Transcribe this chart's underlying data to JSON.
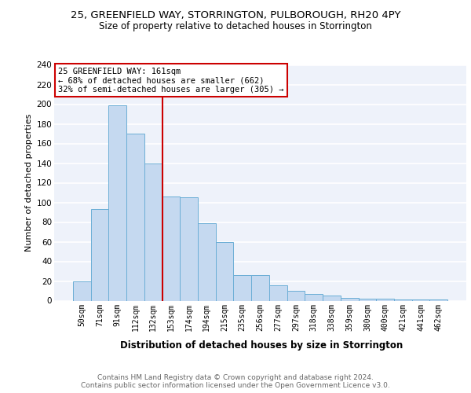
{
  "title1": "25, GREENFIELD WAY, STORRINGTON, PULBOROUGH, RH20 4PY",
  "title2": "Size of property relative to detached houses in Storrington",
  "xlabel": "Distribution of detached houses by size in Storrington",
  "ylabel": "Number of detached properties",
  "categories": [
    "50sqm",
    "71sqm",
    "91sqm",
    "112sqm",
    "132sqm",
    "153sqm",
    "174sqm",
    "194sqm",
    "215sqm",
    "235sqm",
    "256sqm",
    "277sqm",
    "297sqm",
    "318sqm",
    "338sqm",
    "359sqm",
    "380sqm",
    "400sqm",
    "421sqm",
    "441sqm",
    "462sqm"
  ],
  "values": [
    20,
    93,
    199,
    170,
    140,
    106,
    105,
    79,
    60,
    26,
    26,
    16,
    10,
    7,
    5,
    3,
    2,
    2,
    1,
    1,
    1
  ],
  "bar_color": "#c5d9f0",
  "bar_edge_color": "#6baed6",
  "vline_x": 4.5,
  "vline_color": "#cc0000",
  "annotation_text": "25 GREENFIELD WAY: 161sqm\n← 68% of detached houses are smaller (662)\n32% of semi-detached houses are larger (305) →",
  "annotation_box_color": "#ffffff",
  "annotation_box_edge": "#cc0000",
  "ylim": [
    0,
    240
  ],
  "yticks": [
    0,
    20,
    40,
    60,
    80,
    100,
    120,
    140,
    160,
    180,
    200,
    220,
    240
  ],
  "footer_text": "Contains HM Land Registry data © Crown copyright and database right 2024.\nContains public sector information licensed under the Open Government Licence v3.0.",
  "bg_color": "#eef2fa",
  "grid_color": "#ffffff",
  "title1_fontsize": 9.5,
  "title2_fontsize": 8.5,
  "xlabel_fontsize": 8.5,
  "ylabel_fontsize": 8,
  "tick_fontsize": 7,
  "footer_fontsize": 6.5,
  "ann_fontsize": 7.5
}
